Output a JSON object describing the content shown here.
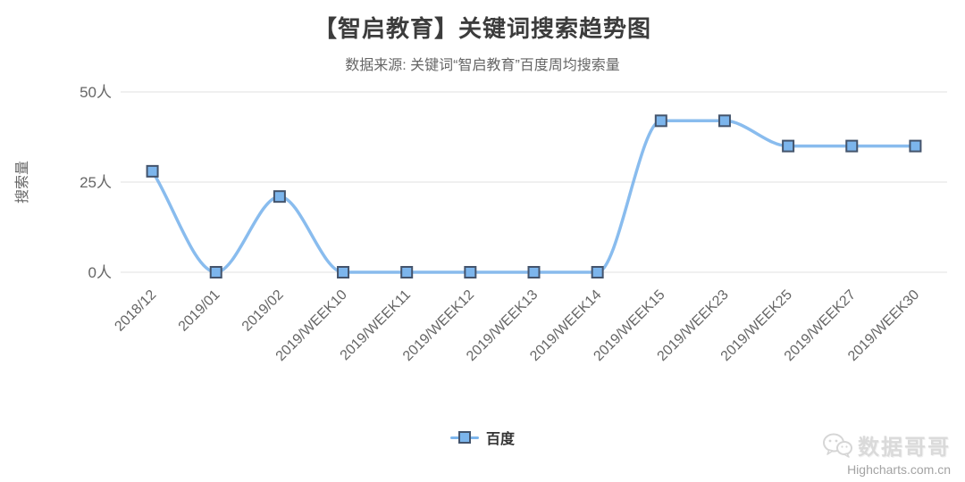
{
  "chart_data": {
    "type": "line",
    "curve": "spline",
    "title": "【智启教育】关键词搜索趋势图",
    "subtitle": "数据来源: 关键词“智启教育”百度周均搜索量",
    "categories": [
      "2018/12",
      "2019/01",
      "2019/02",
      "2019/WEEK10",
      "2019/WEEK11",
      "2019/WEEK12",
      "2019/WEEK13",
      "2019/WEEK14",
      "2019/WEEK15",
      "2019/WEEK23",
      "2019/WEEK25",
      "2019/WEEK27",
      "2019/WEEK30"
    ],
    "series": [
      {
        "name": "百度",
        "values": [
          28,
          0,
          21,
          0,
          0,
          0,
          0,
          0,
          42,
          42,
          35,
          35,
          35
        ],
        "color": "#7cb5ec",
        "marker": "square",
        "marker_border": "#44546c"
      }
    ],
    "xlabel": "",
    "ylabel": "搜索量",
    "ylim": [
      0,
      50
    ],
    "yticks": [
      {
        "value": 0,
        "label": "0人"
      },
      {
        "value": 25,
        "label": "25人"
      },
      {
        "value": 50,
        "label": "50人"
      }
    ],
    "x_label_rotation": -45,
    "grid": true,
    "legend_position": "bottom-center"
  },
  "watermark": {
    "brand": "数据哥哥",
    "credit": "Highcharts.com.cn"
  },
  "colors": {
    "accent": "#7cb5ec",
    "marker_border": "#44546c",
    "grid": "#e2e2e2",
    "title_text": "#3c3c3c",
    "muted_text": "#666666",
    "watermark_text": "#dadada",
    "credit_text": "#a3a3a3"
  }
}
